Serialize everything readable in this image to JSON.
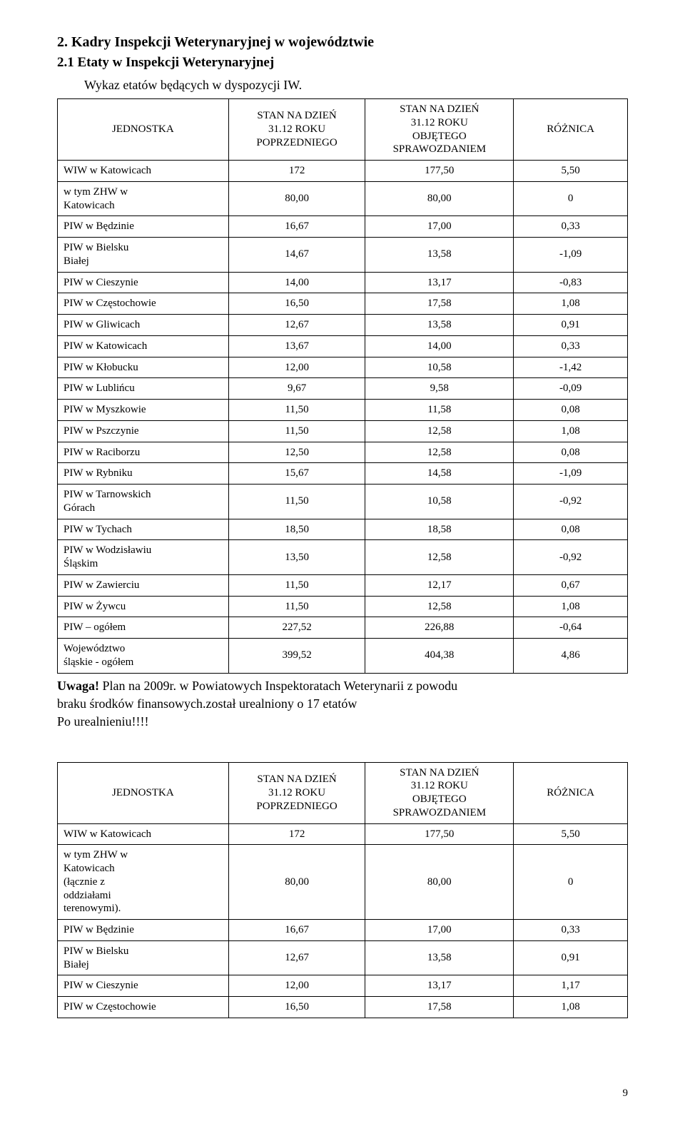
{
  "section_title": "2. Kadry Inspekcji Weterynaryjnej w województwie",
  "subsection_title": "2.1 Etaty w Inspekcji Weterynaryjnej",
  "table_caption": "Wykaz etatów będących w dyspozycji IW.",
  "columns": {
    "unit": "JEDNOSTKA",
    "prev_line1": "STAN NA DZIEŃ",
    "prev_line2": "31.12 ROKU",
    "prev_line3": "POPRZEDNIEGO",
    "cur_line1": "STAN NA DZIEŃ",
    "cur_line2": "31.12 ROKU",
    "cur_line3": "OBJĘTEGO",
    "cur_line4": "SPRAWOZDANIEM",
    "diff": "RÓŻNICA"
  },
  "table1": {
    "rows": [
      {
        "name": "WIW w Katowicach",
        "prev": "172",
        "cur": "177,50",
        "diff": "5,50"
      },
      {
        "name": "w tym ZHW w\nKatowicach",
        "prev": "80,00",
        "cur": "80,00",
        "diff": "0"
      },
      {
        "name": "PIW w Będzinie",
        "prev": "16,67",
        "cur": "17,00",
        "diff": "0,33"
      },
      {
        "name": "PIW w Bielsku\nBiałej",
        "prev": "14,67",
        "cur": "13,58",
        "diff": "-1,09"
      },
      {
        "name": "PIW w Cieszynie",
        "prev": "14,00",
        "cur": "13,17",
        "diff": "-0,83"
      },
      {
        "name": "PIW w Częstochowie",
        "prev": "16,50",
        "cur": "17,58",
        "diff": "1,08"
      },
      {
        "name": "PIW w Gliwicach",
        "prev": "12,67",
        "cur": "13,58",
        "diff": "0,91"
      },
      {
        "name": "PIW w Katowicach",
        "prev": "13,67",
        "cur": "14,00",
        "diff": "0,33"
      },
      {
        "name": "PIW w Kłobucku",
        "prev": "12,00",
        "cur": "10,58",
        "diff": "-1,42"
      },
      {
        "name": "PIW w Lublińcu",
        "prev": "9,67",
        "cur": "9,58",
        "diff": "-0,09"
      },
      {
        "name": "PIW w Myszkowie",
        "prev": "11,50",
        "cur": "11,58",
        "diff": "0,08"
      },
      {
        "name": "PIW w Pszczynie",
        "prev": "11,50",
        "cur": "12,58",
        "diff": "1,08"
      },
      {
        "name": "PIW w Raciborzu",
        "prev": "12,50",
        "cur": "12,58",
        "diff": "0,08"
      },
      {
        "name": "PIW w Rybniku",
        "prev": "15,67",
        "cur": "14,58",
        "diff": "-1,09"
      },
      {
        "name": "PIW w Tarnowskich\nGórach",
        "prev": "11,50",
        "cur": "10,58",
        "diff": "-0,92"
      },
      {
        "name": "PIW w Tychach",
        "prev": "18,50",
        "cur": "18,58",
        "diff": "0,08"
      },
      {
        "name": "PIW w Wodzisławiu\nŚląskim",
        "prev": "13,50",
        "cur": "12,58",
        "diff": "-0,92"
      },
      {
        "name": "PIW w Zawierciu",
        "prev": "11,50",
        "cur": "12,17",
        "diff": "0,67"
      },
      {
        "name": "PIW w Żywcu",
        "prev": "11,50",
        "cur": "12,58",
        "diff": "1,08"
      },
      {
        "name": "PIW – ogółem",
        "prev": "227,52",
        "cur": "226,88",
        "diff": "-0,64"
      },
      {
        "name": "Województwo\nśląskie - ogółem",
        "prev": "399,52",
        "cur": "404,38",
        "diff": "4,86"
      }
    ]
  },
  "note": {
    "lead": "Uwaga!",
    "line1_rest": " Plan na 2009r. w Powiatowych Inspektoratach Weterynarii z powodu",
    "line2": "braku środków finansowych.został urealniony o 17 etatów",
    "line3": "Po urealnieniu!!!!"
  },
  "table2": {
    "rows": [
      {
        "name": "WIW w Katowicach",
        "prev": "172",
        "cur": "177,50",
        "diff": "5,50"
      },
      {
        "name": "w tym ZHW w\nKatowicach\n(łącznie z\noddziałami\nterenowymi).",
        "prev": "80,00",
        "cur": "80,00",
        "diff": "0"
      },
      {
        "name": "PIW w Będzinie",
        "prev": "16,67",
        "cur": "17,00",
        "diff": "0,33"
      },
      {
        "name": "PIW w Bielsku\nBiałej",
        "prev": "12,67",
        "cur": "13,58",
        "diff": "0,91"
      },
      {
        "name": "PIW w Cieszynie",
        "prev": "12,00",
        "cur": "13,17",
        "diff": "1,17"
      },
      {
        "name": "PIW w Częstochowie",
        "prev": "16,50",
        "cur": "17,58",
        "diff": "1,08"
      }
    ]
  },
  "page_number": "9"
}
